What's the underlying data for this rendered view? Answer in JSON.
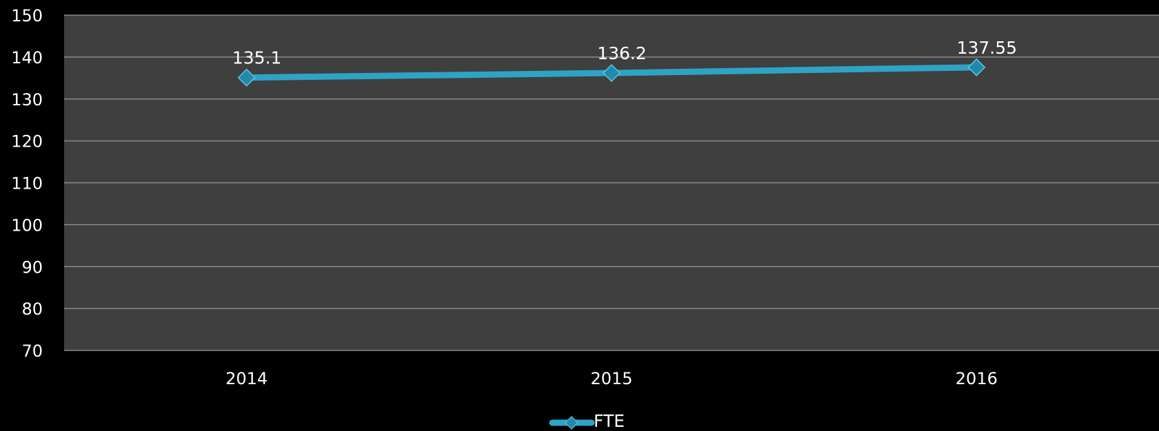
{
  "chart_data": {
    "type": "line",
    "categories": [
      "2014",
      "2015",
      "2016"
    ],
    "series": [
      {
        "name": "FTE",
        "values": [
          135.1,
          136.2,
          137.55
        ],
        "data_labels": [
          "135.1",
          "136.2",
          "137.55"
        ]
      }
    ],
    "ylim": [
      70,
      150
    ],
    "y_ticks": [
      150,
      140,
      130,
      120,
      110,
      100,
      90,
      80,
      70
    ],
    "grid": true,
    "legend": "bottom",
    "title": "",
    "xlabel": "",
    "ylabel": "",
    "colors": {
      "background": "#000000",
      "plot_area": "#3f3f3f",
      "series_line": "#2fa3c7",
      "marker": "#1f8aac",
      "text": "#ffffff",
      "grid": "#8a8a8a"
    }
  }
}
